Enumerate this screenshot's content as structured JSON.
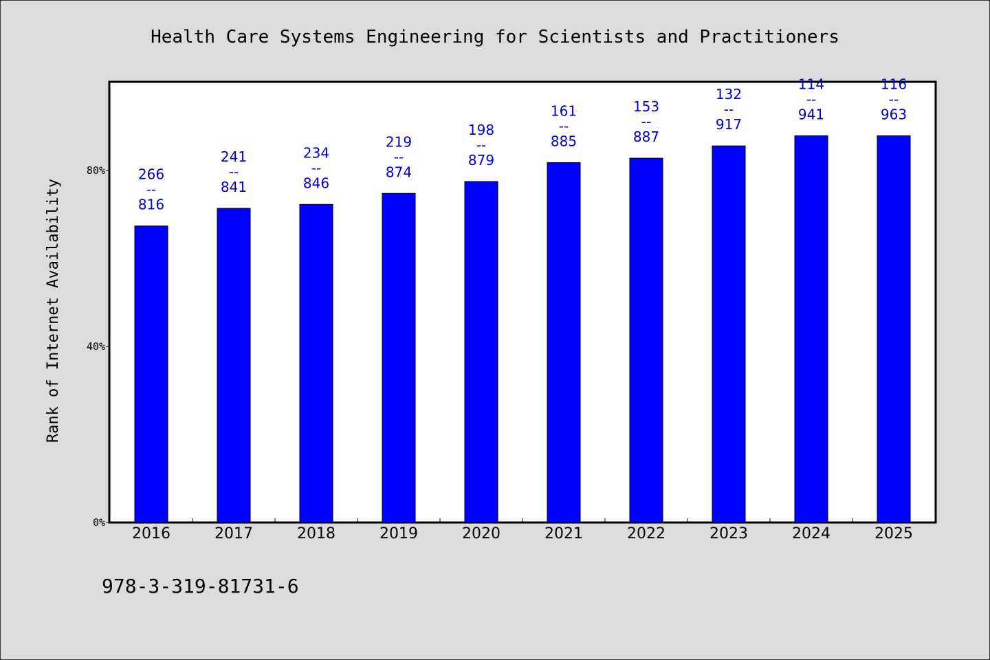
{
  "chart_data": {
    "type": "bar",
    "title": "Health Care Systems Engineering for Scientists and Practitioners",
    "xlabel": "",
    "ylabel": "Rank of Internet Availability",
    "categories": [
      "2016",
      "2017",
      "2018",
      "2019",
      "2020",
      "2021",
      "2022",
      "2023",
      "2024",
      "2025"
    ],
    "values": [
      67.4,
      71.4,
      72.3,
      74.8,
      77.5,
      81.8,
      82.8,
      85.6,
      87.9,
      87.9
    ],
    "value_unit": "%",
    "data_labels": [
      {
        "top": "266",
        "sep": "--",
        "bottom": "816"
      },
      {
        "top": "241",
        "sep": "--",
        "bottom": "841"
      },
      {
        "top": "234",
        "sep": "--",
        "bottom": "846"
      },
      {
        "top": "219",
        "sep": "--",
        "bottom": "874"
      },
      {
        "top": "198",
        "sep": "--",
        "bottom": "879"
      },
      {
        "top": "161",
        "sep": "--",
        "bottom": "885"
      },
      {
        "top": "153",
        "sep": "--",
        "bottom": "887"
      },
      {
        "top": "132",
        "sep": "--",
        "bottom": "917"
      },
      {
        "top": "114",
        "sep": "--",
        "bottom": "941"
      },
      {
        "top": "116",
        "sep": "--",
        "bottom": "963"
      }
    ],
    "yticks": [
      {
        "value": 0,
        "label": "0%"
      },
      {
        "value": 40,
        "label": "40%"
      },
      {
        "value": 80,
        "label": "80%"
      }
    ],
    "ylim": [
      0,
      100
    ],
    "grid": false,
    "legend": "none",
    "colors": {
      "bar": "#0000ff",
      "bar_edge": "#000000",
      "data_label": "#0000cc",
      "plot_background": "#ffffff",
      "figure_background": "#dcdcdc"
    }
  },
  "footer": {
    "isbn": "978-3-319-81731-6"
  }
}
